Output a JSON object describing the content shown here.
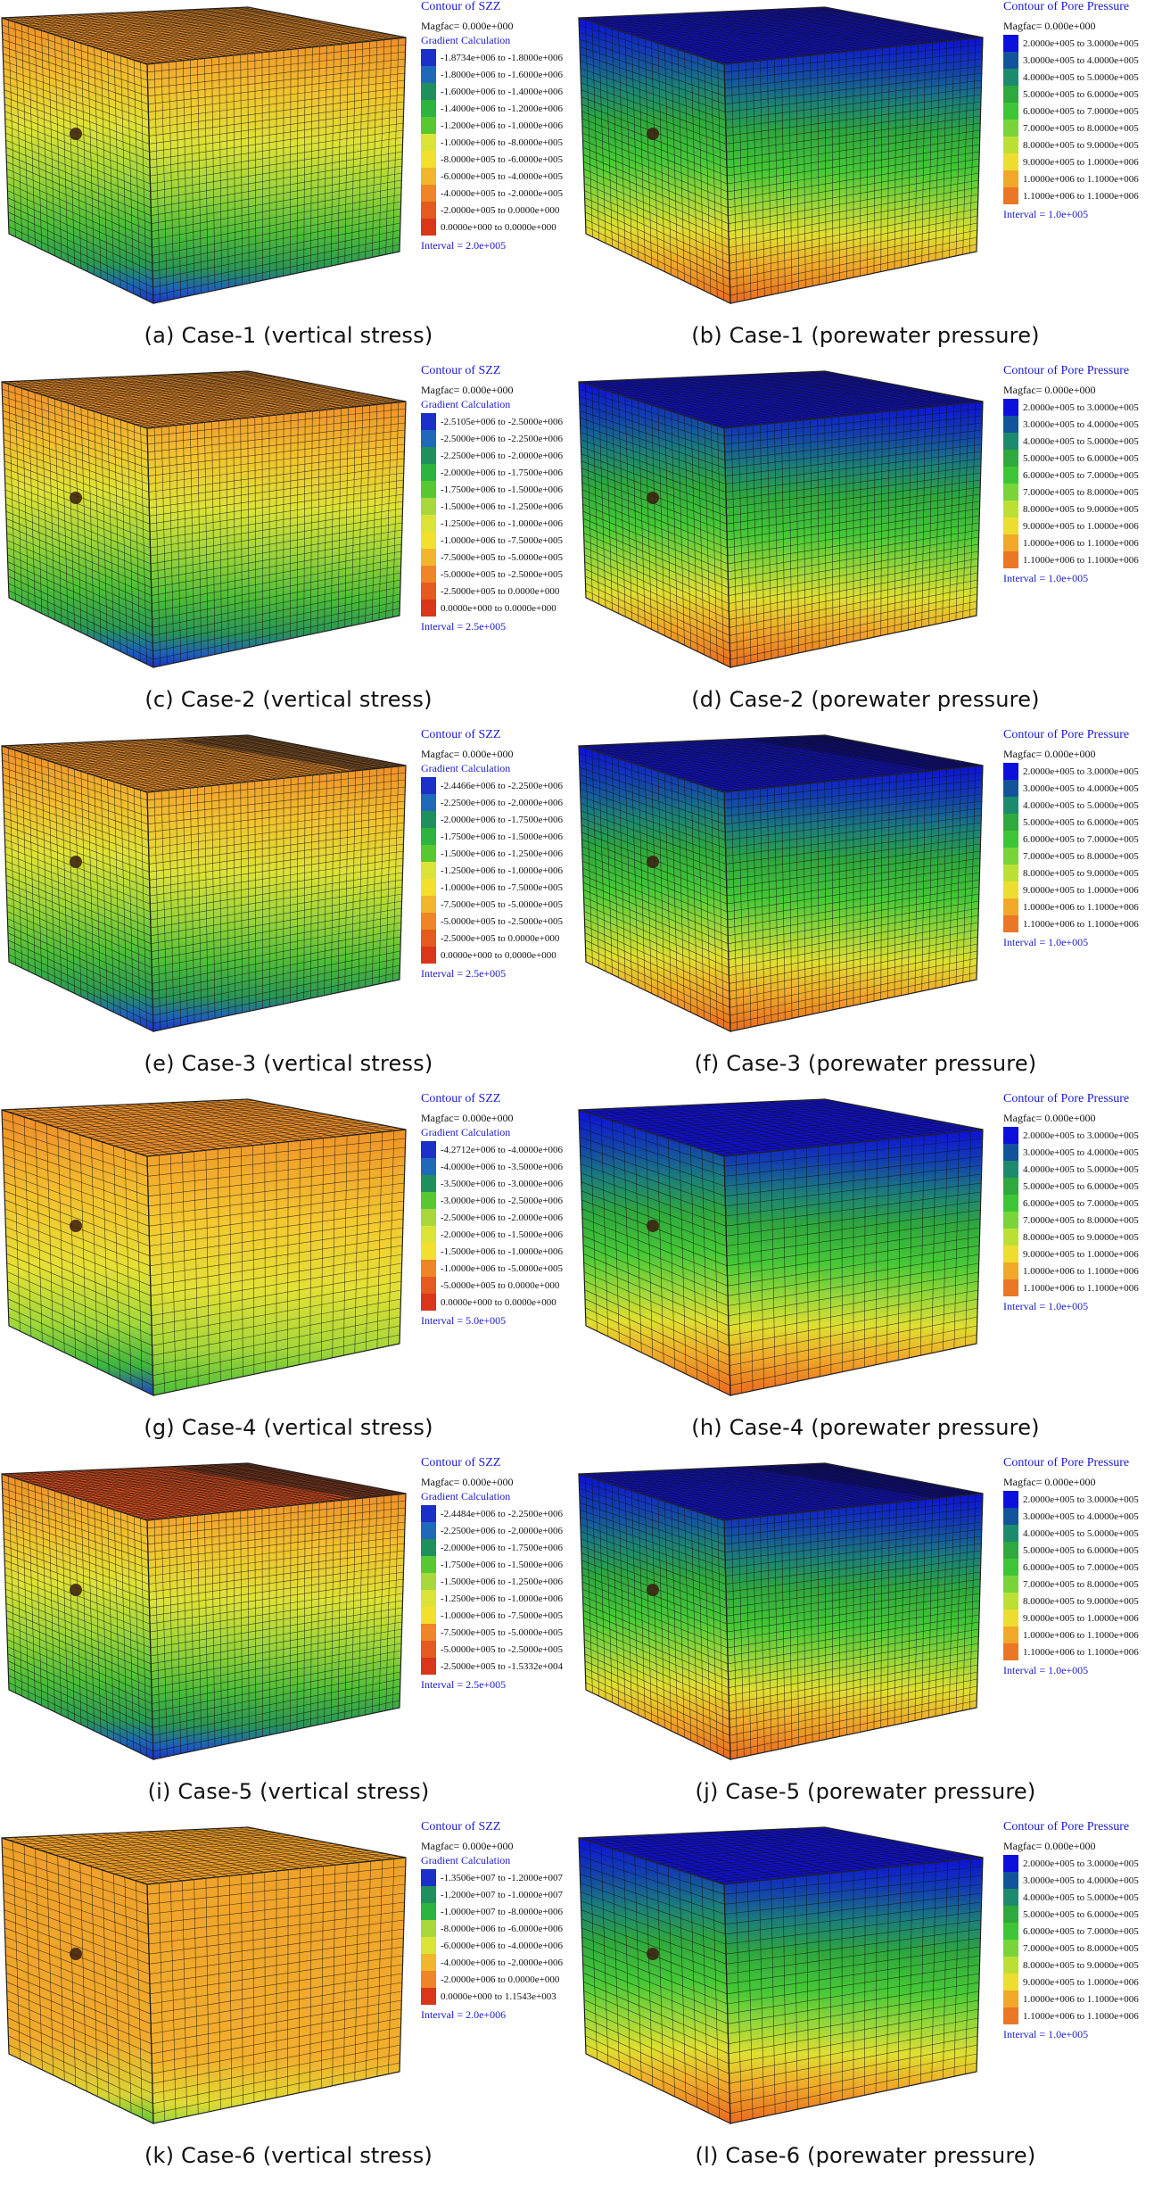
{
  "panels": [
    {
      "caption": "(a) Case-1 (vertical stress)",
      "field": "stress",
      "mesh": "plain",
      "legend": {
        "title": "Contour of SZZ",
        "magfac": "Magfac= 0.000e+000",
        "method": "Gradient Calculation",
        "interval": "Interval = 2.0e+005",
        "items": [
          "-1.8734e+006 to -1.8000e+006",
          "-1.8000e+006 to -1.6000e+006",
          "-1.6000e+006 to -1.4000e+006",
          "-1.4000e+006 to -1.2000e+006",
          "-1.2000e+006 to -1.0000e+006",
          "-1.0000e+006 to -8.0000e+005",
          "-8.0000e+005 to -6.0000e+005",
          "-6.0000e+005 to -4.0000e+005",
          "-4.0000e+005 to -2.0000e+005",
          "-2.0000e+005 to 0.0000e+000",
          "0.0000e+000 to 0.0000e+000"
        ]
      }
    },
    {
      "caption": "(b) Case-1 (porewater pressure)",
      "field": "pore",
      "mesh": "plain",
      "legend": {
        "title": "Contour of Pore Pressure",
        "magfac": "Magfac= 0.000e+000",
        "method": "",
        "interval": "Interval = 1.0e+005",
        "items": [
          "2.0000e+005 to 3.0000e+005",
          "3.0000e+005 to 4.0000e+005",
          "4.0000e+005 to 5.0000e+005",
          "5.0000e+005 to 6.0000e+005",
          "6.0000e+005 to 7.0000e+005",
          "7.0000e+005 to 8.0000e+005",
          "8.0000e+005 to 9.0000e+005",
          "9.0000e+005 to 1.0000e+006",
          "1.0000e+006 to 1.1000e+006",
          "1.1000e+006 to 1.1000e+006"
        ]
      }
    },
    {
      "caption": "(c) Case-2 (vertical stress)",
      "field": "stress",
      "mesh": "plain",
      "legend": {
        "title": "Contour of SZZ",
        "magfac": "Magfac= 0.000e+000",
        "method": "Gradient Calculation",
        "interval": "Interval = 2.5e+005",
        "items": [
          "-2.5105e+006 to -2.5000e+006",
          "-2.5000e+006 to -2.2500e+006",
          "-2.2500e+006 to -2.0000e+006",
          "-2.0000e+006 to -1.7500e+006",
          "-1.7500e+006 to -1.5000e+006",
          "-1.5000e+006 to -1.2500e+006",
          "-1.2500e+006 to -1.0000e+006",
          "-1.0000e+006 to -7.5000e+005",
          "-7.5000e+005 to -5.0000e+005",
          "-5.0000e+005 to -2.5000e+005",
          "-2.5000e+005 to 0.0000e+000",
          "0.0000e+000 to 0.0000e+000"
        ]
      }
    },
    {
      "caption": "(d) Case-2 (porewater pressure)",
      "field": "pore",
      "mesh": "plain",
      "legend": {
        "title": "Contour of Pore Pressure",
        "magfac": "Magfac= 0.000e+000",
        "method": "",
        "interval": "Interval = 1.0e+005",
        "items": [
          "2.0000e+005 to 3.0000e+005",
          "3.0000e+005 to 4.0000e+005",
          "4.0000e+005 to 5.0000e+005",
          "5.0000e+005 to 6.0000e+005",
          "6.0000e+005 to 7.0000e+005",
          "7.0000e+005 to 8.0000e+005",
          "8.0000e+005 to 9.0000e+005",
          "9.0000e+005 to 1.0000e+006",
          "1.0000e+006 to 1.1000e+006",
          "1.1000e+006 to 1.1000e+006"
        ]
      }
    },
    {
      "caption": "(e) Case-3 (vertical stress)",
      "field": "stress",
      "mesh": "fan",
      "legend": {
        "title": "Contour of SZZ",
        "magfac": "Magfac= 0.000e+000",
        "method": "Gradient Calculation",
        "interval": "Interval = 2.5e+005",
        "items": [
          "-2.4466e+006 to -2.2500e+006",
          "-2.2500e+006 to -2.0000e+006",
          "-2.0000e+006 to -1.7500e+006",
          "-1.7500e+006 to -1.5000e+006",
          "-1.5000e+006 to -1.2500e+006",
          "-1.2500e+006 to -1.0000e+006",
          "-1.0000e+006 to -7.5000e+005",
          "-7.5000e+005 to -5.0000e+005",
          "-5.0000e+005 to -2.5000e+005",
          "-2.5000e+005 to 0.0000e+000",
          "0.0000e+000 to 0.0000e+000"
        ]
      }
    },
    {
      "caption": "(f) Case-3 (porewater pressure)",
      "field": "pore",
      "mesh": "fan",
      "legend": {
        "title": "Contour of Pore Pressure",
        "magfac": "Magfac= 0.000e+000",
        "method": "",
        "interval": "Interval = 1.0e+005",
        "items": [
          "2.0000e+005 to 3.0000e+005",
          "3.0000e+005 to 4.0000e+005",
          "4.0000e+005 to 5.0000e+005",
          "5.0000e+005 to 6.0000e+005",
          "6.0000e+005 to 7.0000e+005",
          "7.0000e+005 to 8.0000e+005",
          "8.0000e+005 to 9.0000e+005",
          "9.0000e+005 to 1.0000e+006",
          "1.0000e+006 to 1.1000e+006",
          "1.1000e+006 to 1.1000e+006"
        ]
      }
    },
    {
      "caption": "(g) Case-4 (vertical stress)",
      "field": "stress",
      "mesh": "coarse",
      "legend": {
        "title": "Contour of SZZ",
        "magfac": "Magfac= 0.000e+000",
        "method": "Gradient Calculation",
        "interval": "Interval = 5.0e+005",
        "items": [
          "-4.2712e+006 to -4.0000e+006",
          "-4.0000e+006 to -3.5000e+006",
          "-3.5000e+006 to -3.0000e+006",
          "-3.0000e+006 to -2.5000e+006",
          "-2.5000e+006 to -2.0000e+006",
          "-2.0000e+006 to -1.5000e+006",
          "-1.5000e+006 to -1.0000e+006",
          "-1.0000e+006 to -5.0000e+005",
          "-5.0000e+005 to 0.0000e+000",
          "0.0000e+000 to 0.0000e+000"
        ]
      }
    },
    {
      "caption": "(h) Case-4 (porewater pressure)",
      "field": "pore",
      "mesh": "coarse",
      "legend": {
        "title": "Contour of Pore Pressure",
        "magfac": "Magfac= 0.000e+000",
        "method": "",
        "interval": "Interval = 1.0e+005",
        "items": [
          "2.0000e+005 to 3.0000e+005",
          "3.0000e+005 to 4.0000e+005",
          "4.0000e+005 to 5.0000e+005",
          "5.0000e+005 to 6.0000e+005",
          "6.0000e+005 to 7.0000e+005",
          "7.0000e+005 to 8.0000e+005",
          "8.0000e+005 to 9.0000e+005",
          "9.0000e+005 to 1.0000e+006",
          "1.0000e+006 to 1.1000e+006",
          "1.1000e+006 to 1.1000e+006"
        ]
      }
    },
    {
      "caption": "(i) Case-5 (vertical stress)",
      "field": "stress",
      "mesh": "fan",
      "legend": {
        "title": "Contour of SZZ",
        "magfac": "Magfac= 0.000e+000",
        "method": "Gradient Calculation",
        "interval": "Interval = 2.5e+005",
        "items": [
          "-2.4484e+006 to -2.2500e+006",
          "-2.2500e+006 to -2.0000e+006",
          "-2.0000e+006 to -1.7500e+006",
          "-1.7500e+006 to -1.5000e+006",
          "-1.5000e+006 to -1.2500e+006",
          "-1.2500e+006 to -1.0000e+006",
          "-1.0000e+006 to -7.5000e+005",
          "-7.5000e+005 to -5.0000e+005",
          "-5.0000e+005 to -2.5000e+005",
          "-2.5000e+005 to -1.5332e+004"
        ]
      }
    },
    {
      "caption": "(j) Case-5 (porewater pressure)",
      "field": "pore",
      "mesh": "fan",
      "legend": {
        "title": "Contour of Pore Pressure",
        "magfac": "Magfac= 0.000e+000",
        "method": "",
        "interval": "Interval = 1.0e+005",
        "items": [
          "2.0000e+005 to 3.0000e+005",
          "3.0000e+005 to 4.0000e+005",
          "4.0000e+005 to 5.0000e+005",
          "5.0000e+005 to 6.0000e+005",
          "6.0000e+005 to 7.0000e+005",
          "7.0000e+005 to 8.0000e+005",
          "8.0000e+005 to 9.0000e+005",
          "9.0000e+005 to 1.0000e+006",
          "1.0000e+006 to 1.1000e+006",
          "1.1000e+006 to 1.1000e+006"
        ]
      }
    },
    {
      "caption": "(k) Case-6 (vertical stress)",
      "field": "stress",
      "mesh": "coarse",
      "legend": {
        "title": "Contour of SZZ",
        "magfac": "Magfac= 0.000e+000",
        "method": "Gradient Calculation",
        "interval": "Interval = 2.0e+006",
        "items": [
          "-1.3506e+007 to -1.2000e+007",
          "-1.2000e+007 to -1.0000e+007",
          "-1.0000e+007 to -8.0000e+006",
          "-8.0000e+006 to -6.0000e+006",
          "-6.0000e+006 to -4.0000e+006",
          "-4.0000e+006 to -2.0000e+006",
          "-2.0000e+006 to 0.0000e+000",
          "0.0000e+000 to 1.1543e+003"
        ]
      }
    },
    {
      "caption": "(l) Case-6 (porewater pressure)",
      "field": "pore",
      "mesh": "coarse",
      "legend": {
        "title": "Contour of Pore Pressure",
        "magfac": "Magfac= 0.000e+000",
        "method": "",
        "interval": "Interval = 1.0e+005",
        "items": [
          "2.0000e+005 to 3.0000e+005",
          "3.0000e+005 to 4.0000e+005",
          "4.0000e+005 to 5.0000e+005",
          "5.0000e+005 to 6.0000e+005",
          "6.0000e+005 to 7.0000e+005",
          "7.0000e+005 to 8.0000e+005",
          "8.0000e+005 to 9.0000e+005",
          "9.0000e+005 to 1.0000e+006",
          "1.0000e+006 to 1.1000e+006",
          "1.1000e+006 to 1.1000e+006"
        ]
      }
    }
  ],
  "colors": {
    "stress_scale": [
      "#1c2fc6",
      "#1e6ab8",
      "#1f8f5e",
      "#2eb33c",
      "#58c832",
      "#a9d83a",
      "#dbe436",
      "#f3df2e",
      "#f2b62c",
      "#ee8526",
      "#e55a1f",
      "#d9361a"
    ],
    "pore_scale": [
      "#0d0fdf",
      "#13539a",
      "#1c8a6d",
      "#2fa83d",
      "#3cc635",
      "#79d43a",
      "#bcdf34",
      "#eddd30",
      "#f0a829",
      "#eb7624",
      "#e24a1e"
    ],
    "label_blue": "#1a1acc",
    "mesh_line": "#111111"
  }
}
